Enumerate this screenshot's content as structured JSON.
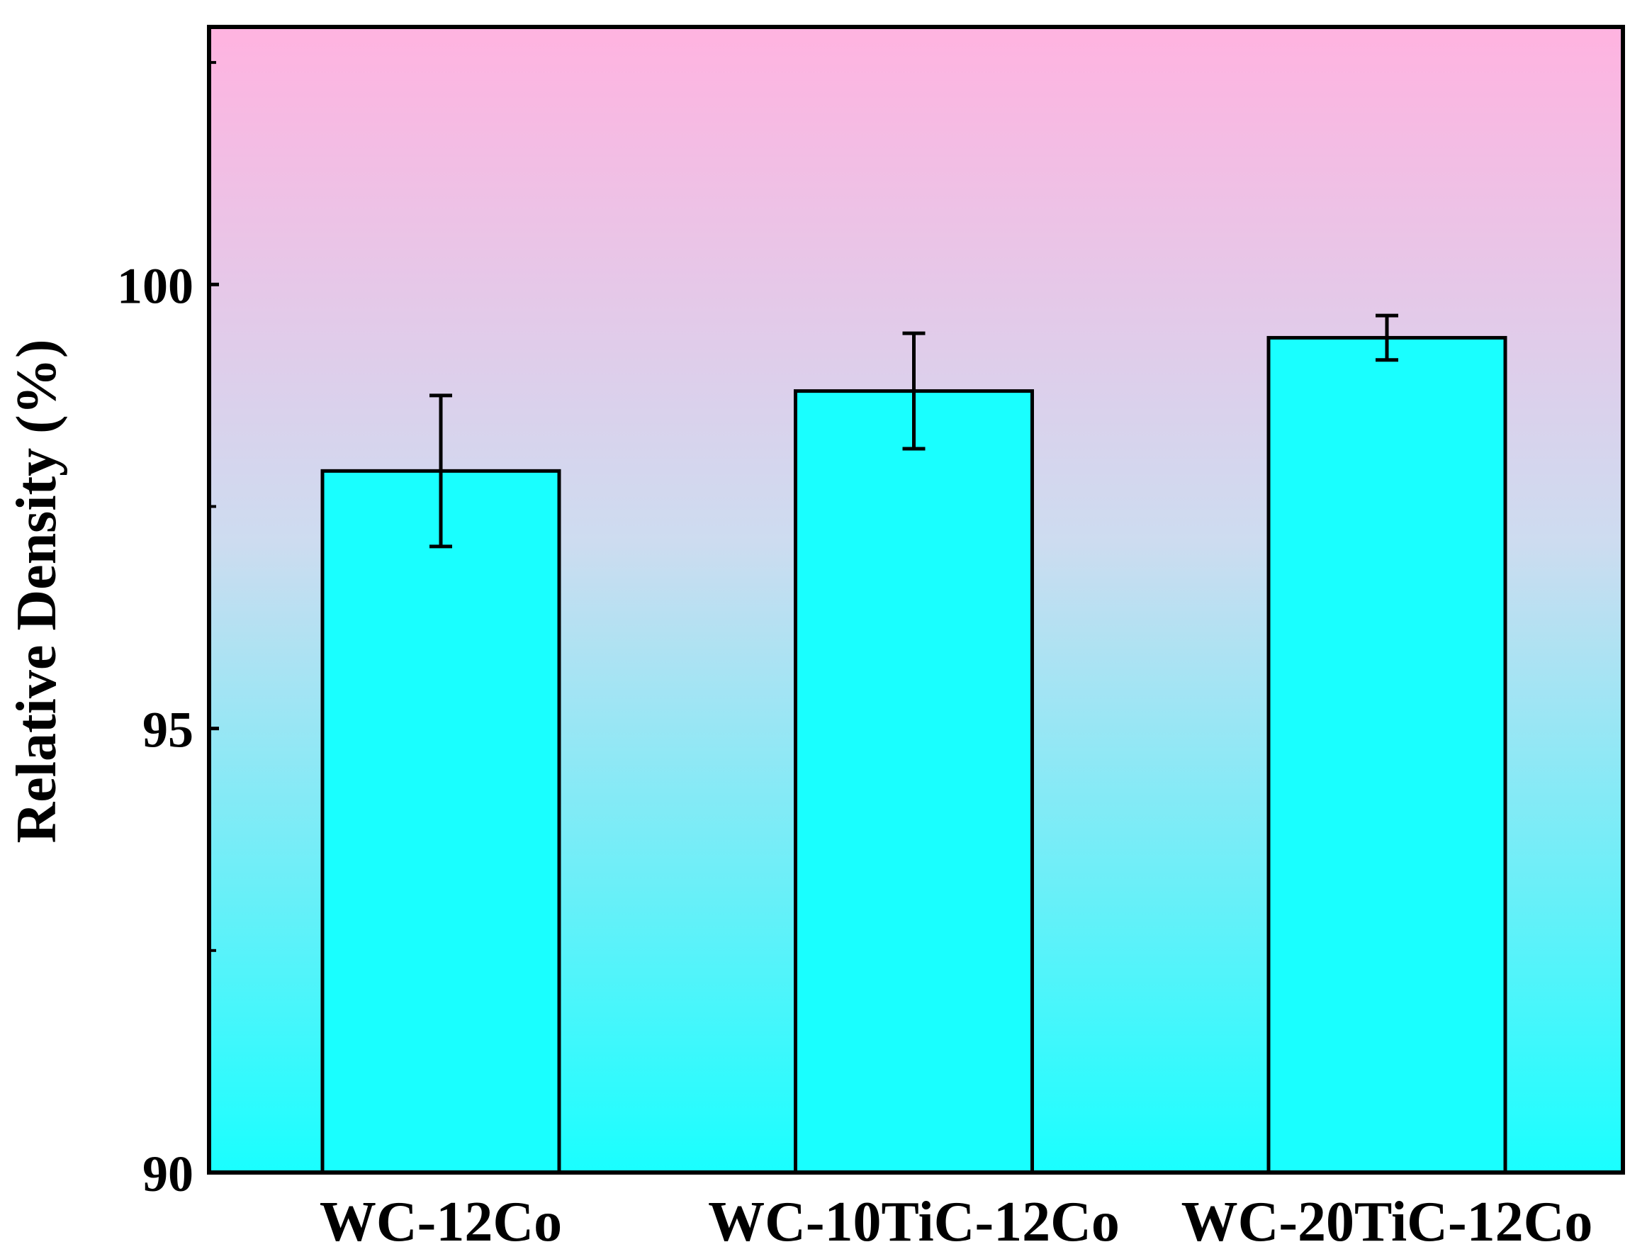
{
  "chart_data": {
    "type": "bar",
    "title": "",
    "xlabel": "",
    "ylabel": "Relative Density (%)",
    "categories": [
      "WC-12Co",
      "WC-10TiC-12Co",
      "WC-20TiC-12Co"
    ],
    "series": [
      {
        "name": "Relative Density",
        "values": [
          97.9,
          98.8,
          99.4
        ],
        "errors": [
          0.85,
          0.65,
          0.25
        ]
      }
    ],
    "ylim": [
      90,
      102.9
    ],
    "yticks": [
      90,
      95,
      100
    ],
    "yticks_minor": [
      92.5,
      97.5,
      102.5
    ],
    "grid": false,
    "legend": "none",
    "colors": {
      "bar_fill": "#19FFFF",
      "bar_stroke": "#000000",
      "background_top": "#FFB3E0",
      "background_mid": "#CDDCF0",
      "background_bottom": "#19FFFF",
      "axis": "#000000"
    }
  }
}
